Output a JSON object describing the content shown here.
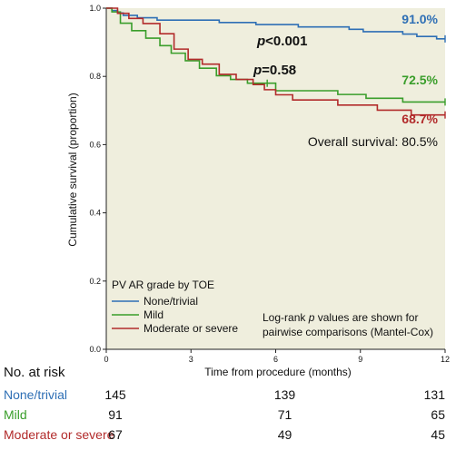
{
  "chart_data": {
    "type": "line",
    "subtype": "kaplan-meier",
    "xlabel": "Time from procedure (months)",
    "ylabel": "Cumulative survival (proportion)",
    "xlim": [
      0,
      12
    ],
    "ylim": [
      0,
      1.0
    ],
    "xticks": [
      0,
      3,
      6,
      9,
      12
    ],
    "yticks": [
      0.0,
      0.2,
      0.4,
      0.6,
      0.8,
      1.0
    ],
    "yticklabels": [
      "0.0",
      "0.2",
      "0.4",
      "0.6",
      "0.8",
      "1.0"
    ],
    "grid": false,
    "plot_background": "#efeedd",
    "legend": {
      "title": "PV AR grade by TOE",
      "placement": "bottom-left"
    },
    "series": [
      {
        "name": "None/trivial",
        "color": "#2e6fb5",
        "end_label": "91.0%",
        "x": [
          0,
          0.2,
          0.4,
          0.6,
          0.8,
          1.1,
          1.4,
          1.8,
          2.3,
          3.2,
          4.0,
          4.7,
          5.3,
          6.0,
          6.8,
          7.8,
          8.6,
          9.1,
          9.6,
          10.5,
          11.0,
          11.4,
          11.7,
          12.0
        ],
        "y": [
          1.0,
          0.993,
          0.986,
          0.979,
          0.979,
          0.972,
          0.972,
          0.965,
          0.965,
          0.965,
          0.958,
          0.958,
          0.952,
          0.952,
          0.945,
          0.945,
          0.938,
          0.931,
          0.931,
          0.924,
          0.917,
          0.917,
          0.91,
          0.91
        ],
        "censor_x": [
          12.0
        ]
      },
      {
        "name": "Mild",
        "color": "#3a9e2b",
        "end_label": "72.5%",
        "x": [
          0,
          0.2,
          0.5,
          0.9,
          1.4,
          1.9,
          2.3,
          2.8,
          3.3,
          3.9,
          4.4,
          5.0,
          5.6,
          6.0,
          6.5,
          7.2,
          8.2,
          9.2,
          9.8,
          10.5,
          12.0
        ],
        "y": [
          1.0,
          0.989,
          0.956,
          0.934,
          0.912,
          0.89,
          0.868,
          0.846,
          0.824,
          0.802,
          0.791,
          0.78,
          0.78,
          0.758,
          0.758,
          0.758,
          0.747,
          0.736,
          0.736,
          0.725,
          0.725
        ],
        "censor_x": [
          5.7,
          12.0
        ]
      },
      {
        "name": "Moderate or severe",
        "color": "#b22b2b",
        "end_label": "68.7%",
        "x": [
          0,
          0.4,
          0.8,
          1.3,
          1.9,
          2.4,
          2.9,
          3.4,
          4.0,
          4.6,
          5.2,
          5.6,
          6.0,
          6.6,
          7.5,
          8.2,
          9.2,
          9.6,
          10.2,
          10.8,
          12.0
        ],
        "y": [
          1.0,
          0.985,
          0.97,
          0.955,
          0.925,
          0.88,
          0.85,
          0.836,
          0.806,
          0.791,
          0.776,
          0.761,
          0.746,
          0.731,
          0.731,
          0.716,
          0.716,
          0.701,
          0.701,
          0.687,
          0.687
        ],
        "censor_x": [
          12.0
        ]
      }
    ],
    "annotations": {
      "p_main": "p<0.001",
      "p_pair": "p=0.58",
      "overall": "Overall survival: 80.5%",
      "logrank_line1": "Log-rank p values are shown for",
      "logrank_line2": "pairwise comparisons (Mantel-Cox)"
    },
    "risk_table": {
      "title": "No. at risk",
      "timepoints": [
        0,
        6,
        12
      ],
      "rows": [
        {
          "label": "None/trivial",
          "color": "#2e6fb5",
          "values": [
            145,
            139,
            131
          ]
        },
        {
          "label": "Mild",
          "color": "#3a9e2b",
          "values": [
            91,
            71,
            65
          ]
        },
        {
          "label": "Moderate or severe",
          "color": "#b22b2b",
          "values": [
            67,
            49,
            45
          ]
        }
      ]
    }
  }
}
